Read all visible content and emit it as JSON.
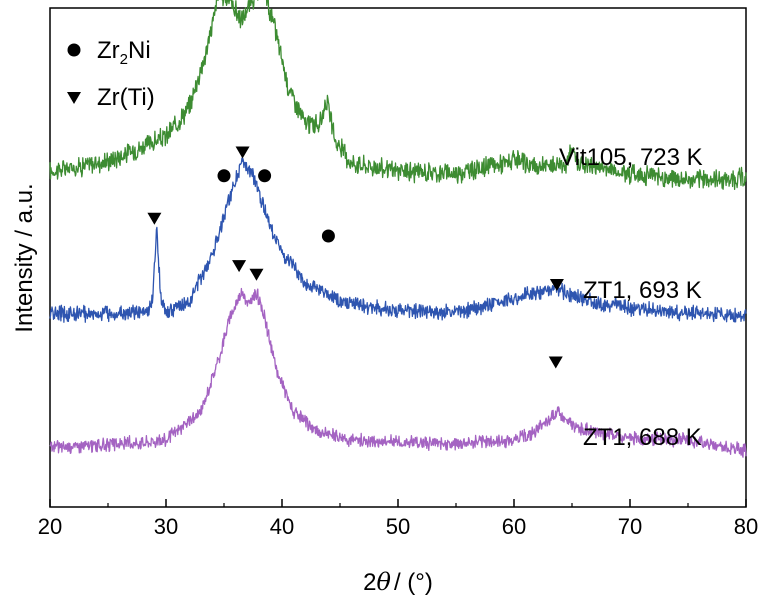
{
  "chart_data": {
    "type": "line",
    "xlabel_prefix": "2",
    "xlabel_theta": "θ",
    "xlabel_unit": "/ (°)",
    "ylabel": "Intensity / a.u.",
    "xlim": [
      20,
      80
    ],
    "xticks": [
      20,
      30,
      40,
      50,
      60,
      70,
      80
    ],
    "yticks_shown": false,
    "legend": {
      "placement": "top-left",
      "entries": [
        {
          "marker": "circle",
          "label_main": "Zr",
          "label_sub": "2",
          "label_tail": "Ni"
        },
        {
          "marker": "triangle-down",
          "label": "Zr(Ti)"
        }
      ]
    },
    "series": [
      {
        "name": "Vit105, 723 K",
        "color": "#3d8c32",
        "baseline": 3.0,
        "noise": 0.09,
        "points": [
          [
            20,
            0.3
          ],
          [
            25,
            0.42
          ],
          [
            30,
            0.7
          ],
          [
            32,
            1.05
          ],
          [
            33.5,
            1.7
          ],
          [
            34.5,
            2.35
          ],
          [
            35.5,
            2.3
          ],
          [
            36.5,
            2.05
          ],
          [
            37.5,
            2.3
          ],
          [
            38.5,
            2.4
          ],
          [
            39.5,
            1.9
          ],
          [
            40.5,
            1.3
          ],
          [
            42,
            0.85
          ],
          [
            43.3,
            0.85
          ],
          [
            43.8,
            1.15
          ],
          [
            44.6,
            0.65
          ],
          [
            46,
            0.4
          ],
          [
            50,
            0.3
          ],
          [
            55,
            0.28
          ],
          [
            60,
            0.42
          ],
          [
            62,
            0.35
          ],
          [
            64.5,
            0.4
          ],
          [
            65,
            0.55
          ],
          [
            65.5,
            0.4
          ],
          [
            70,
            0.28
          ],
          [
            75,
            0.2
          ],
          [
            80,
            0.22
          ]
        ],
        "markers": [
          {
            "type": "circle",
            "x": 35.0,
            "y": 3.25
          },
          {
            "type": "circle",
            "x": 38.5,
            "y": 3.25
          },
          {
            "type": "circle",
            "x": 44.0,
            "y": 2.55
          }
        ]
      },
      {
        "name": "ZT1, 693 K",
        "color": "#2e55b0",
        "baseline": 1.6,
        "noise": 0.07,
        "points": [
          [
            20,
            0.05
          ],
          [
            25,
            0.05
          ],
          [
            28.5,
            0.06
          ],
          [
            28.9,
            0.3
          ],
          [
            29.2,
            1.1
          ],
          [
            29.5,
            0.3
          ],
          [
            30,
            0.06
          ],
          [
            32,
            0.18
          ],
          [
            34,
            0.75
          ],
          [
            35.5,
            1.4
          ],
          [
            36.5,
            1.8
          ],
          [
            37.5,
            1.65
          ],
          [
            38.5,
            1.25
          ],
          [
            40,
            0.75
          ],
          [
            42,
            0.4
          ],
          [
            45,
            0.18
          ],
          [
            50,
            0.08
          ],
          [
            55,
            0.06
          ],
          [
            60,
            0.22
          ],
          [
            62,
            0.3
          ],
          [
            63.5,
            0.35
          ],
          [
            65,
            0.25
          ],
          [
            68,
            0.15
          ],
          [
            72,
            0.08
          ],
          [
            76,
            0.05
          ],
          [
            80,
            0.02
          ]
        ],
        "markers": [
          {
            "type": "triangle-down",
            "x": 29.0,
            "y": 2.75
          },
          {
            "type": "triangle-down",
            "x": 36.6,
            "y": 3.52
          },
          {
            "type": "triangle-down",
            "x": 63.7,
            "y": 1.98
          }
        ]
      },
      {
        "name": "ZT1, 688 K",
        "color": "#a463c2",
        "baseline": 0.0,
        "noise": 0.06,
        "points": [
          [
            20,
            0.1
          ],
          [
            25,
            0.12
          ],
          [
            30,
            0.18
          ],
          [
            33,
            0.5
          ],
          [
            34.5,
            1.1
          ],
          [
            35.5,
            1.6
          ],
          [
            36.5,
            1.9
          ],
          [
            37.2,
            1.75
          ],
          [
            37.8,
            1.9
          ],
          [
            38.5,
            1.6
          ],
          [
            39.5,
            1.0
          ],
          [
            41,
            0.5
          ],
          [
            43,
            0.28
          ],
          [
            46,
            0.18
          ],
          [
            50,
            0.15
          ],
          [
            55,
            0.14
          ],
          [
            60,
            0.18
          ],
          [
            61.5,
            0.25
          ],
          [
            63,
            0.4
          ],
          [
            63.7,
            0.5
          ],
          [
            64.5,
            0.4
          ],
          [
            66,
            0.3
          ],
          [
            70,
            0.2
          ],
          [
            75,
            0.18
          ],
          [
            80,
            0.05
          ]
        ],
        "markers": [
          {
            "type": "triangle-down",
            "x": 36.3,
            "y": 2.2
          },
          {
            "type": "triangle-down",
            "x": 37.8,
            "y": 2.1
          },
          {
            "type": "triangle-down",
            "x": 63.6,
            "y": 1.08
          }
        ]
      }
    ]
  }
}
